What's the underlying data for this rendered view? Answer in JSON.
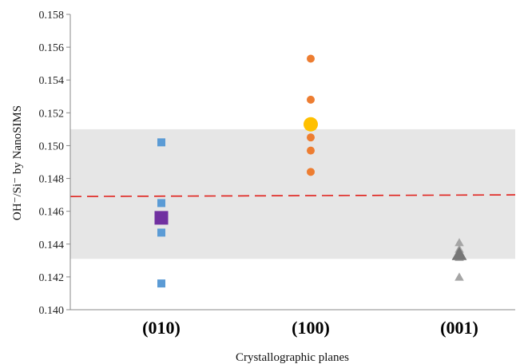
{
  "chart_data": {
    "type": "scatter",
    "xlabel": "Crystallographic planes",
    "ylabel": "OH⁻/Si⁻ by NanoSIMS",
    "categories": [
      "(010)",
      "(100)",
      "(001)"
    ],
    "ylim": [
      0.14,
      0.158
    ],
    "yticks": [
      "0.140",
      "0.142",
      "0.144",
      "0.146",
      "0.148",
      "0.150",
      "0.152",
      "0.154",
      "0.156",
      "0.158"
    ],
    "grid": false,
    "band": {
      "y0": 0.1431,
      "y1": 0.151,
      "color": "#e6e6e6"
    },
    "reference_line": {
      "y_left": 0.1469,
      "y_right": 0.147,
      "color": "#e0201b",
      "style": "dashed"
    },
    "series": [
      {
        "category": "(010)",
        "marker": "square",
        "color": "#5b9bd5",
        "points": [
          0.1502,
          0.1465,
          0.1447,
          0.1416
        ]
      },
      {
        "category": "(010)",
        "marker": "square",
        "color": "#7030a0",
        "role": "mean",
        "points": [
          0.1456
        ]
      },
      {
        "category": "(100)",
        "marker": "circle",
        "color": "#ed7d31",
        "points": [
          0.1553,
          0.1528,
          0.1505,
          0.1497,
          0.1484
        ]
      },
      {
        "category": "(100)",
        "marker": "circle",
        "color": "#ffc000",
        "role": "mean",
        "points": [
          0.1513
        ]
      },
      {
        "category": "(001)",
        "marker": "triangle",
        "color": "#a5a5a5",
        "points": [
          0.1441,
          0.1437,
          0.1432,
          0.142
        ]
      },
      {
        "category": "(001)",
        "marker": "triangle",
        "color": "#767676",
        "role": "mean",
        "points": [
          0.1434
        ]
      }
    ]
  }
}
